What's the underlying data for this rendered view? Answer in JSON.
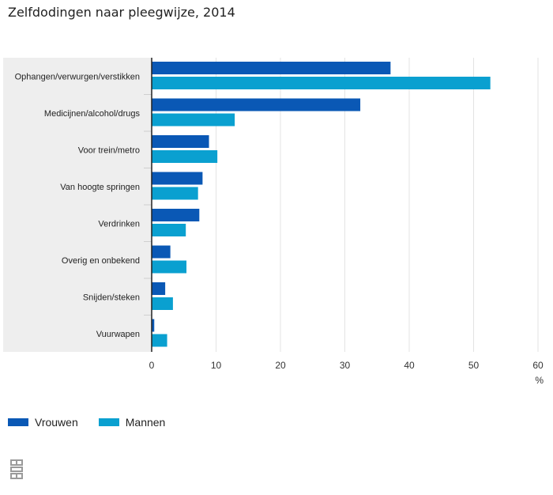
{
  "chart_data": {
    "type": "bar",
    "orientation": "horizontal",
    "title": "Zelfdodingen naar pleegwijze, 2014",
    "xlabel": "%",
    "ylabel": "",
    "xlim": [
      0,
      60
    ],
    "xticks": [
      "0",
      "10",
      "20",
      "30",
      "40",
      "50",
      "60"
    ],
    "grid": true,
    "legend_position": "bottom-left",
    "categories": [
      "Ophangen/verwurgen/verstikken",
      "Medicijnen/alcohol/drugs",
      "Voor trein/metro",
      "Van hoogte springen",
      "Verdrinken",
      "Overig en onbekend",
      "Snijden/steken",
      "Vuurwapen"
    ],
    "series": [
      {
        "name": "Vrouwen",
        "color": "#0a58b5",
        "values": [
          37.1,
          32.4,
          8.9,
          7.9,
          7.4,
          2.9,
          2.1,
          0.4
        ]
      },
      {
        "name": "Mannen",
        "color": "#0aa0d0",
        "values": [
          52.6,
          12.9,
          10.2,
          7.2,
          5.3,
          5.4,
          3.3,
          2.4
        ]
      }
    ]
  }
}
